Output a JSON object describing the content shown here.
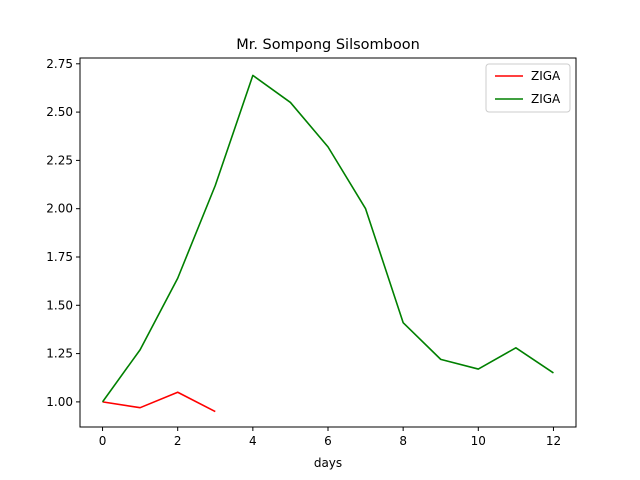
{
  "chart_data": {
    "type": "line",
    "title": "Mr. Sompong Silsomboon",
    "xlabel": "days",
    "ylabel": "",
    "xlim": [
      -0.6,
      12.6
    ],
    "ylim": [
      0.87,
      2.78
    ],
    "xticks": [
      0,
      2,
      4,
      6,
      8,
      10,
      12
    ],
    "xtick_labels": [
      "0",
      "2",
      "4",
      "6",
      "8",
      "10",
      "12"
    ],
    "yticks": [
      1.0,
      1.25,
      1.5,
      1.75,
      2.0,
      2.25,
      2.5,
      2.75
    ],
    "ytick_labels": [
      "1.00",
      "1.25",
      "1.50",
      "1.75",
      "2.00",
      "2.25",
      "2.50",
      "2.75"
    ],
    "grid": false,
    "legend_position": "top-right",
    "series": [
      {
        "name": "ZIGA",
        "color": "#ff0000",
        "x": [
          0,
          1,
          2,
          3
        ],
        "y": [
          1.0,
          0.97,
          1.05,
          0.95
        ]
      },
      {
        "name": "ZIGA",
        "color": "#008000",
        "x": [
          0,
          1,
          2,
          3,
          4,
          5,
          6,
          7,
          8,
          9,
          10,
          11,
          12
        ],
        "y": [
          1.0,
          1.27,
          1.64,
          2.12,
          2.69,
          2.55,
          2.32,
          2.0,
          1.41,
          1.22,
          1.17,
          1.28,
          1.15
        ]
      }
    ]
  }
}
